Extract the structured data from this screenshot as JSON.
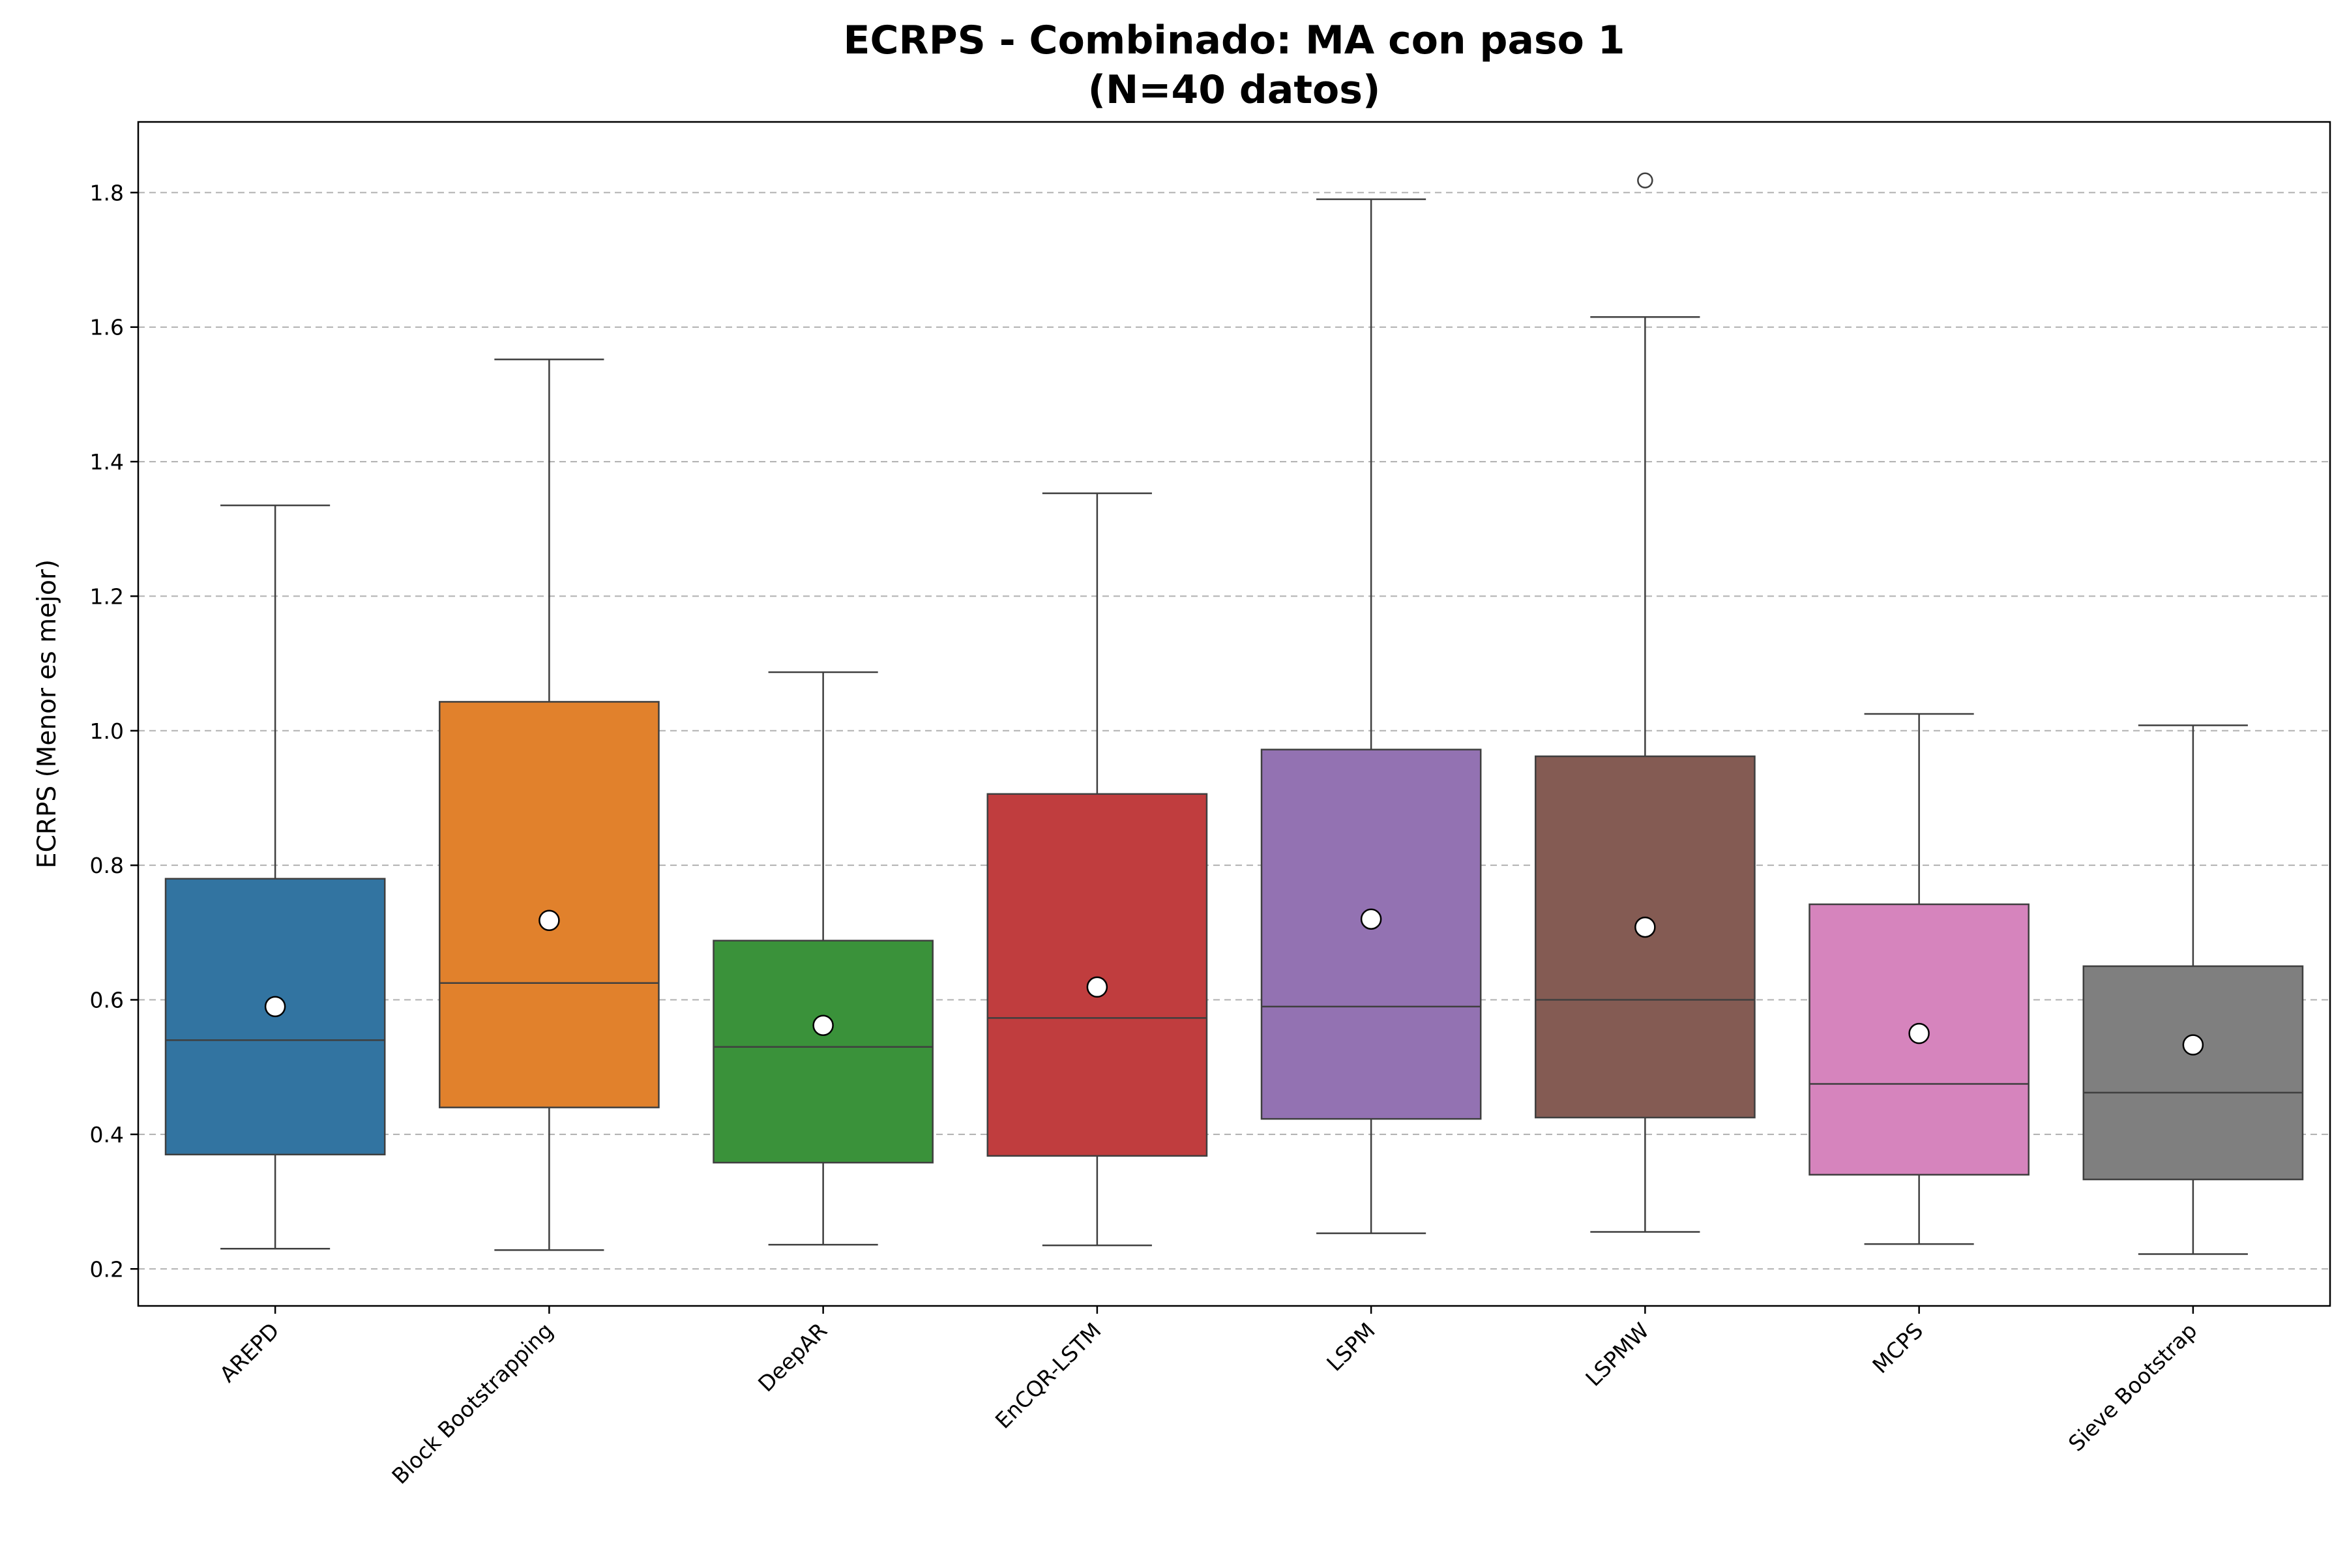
{
  "chart_data": {
    "type": "box",
    "title": "ECRPS - Combinado: MA con paso 1",
    "subtitle": "(N=40 datos)",
    "xlabel": "",
    "ylabel": "ECRPS (Menor es mejor)",
    "ylim": [
      0.145,
      1.905
    ],
    "yticks": [
      0.2,
      0.4,
      0.6,
      0.8,
      1.0,
      1.2,
      1.4,
      1.6,
      1.8
    ],
    "ytick_labels": [
      "0.2",
      "0.4",
      "0.6",
      "0.8",
      "1.0",
      "1.2",
      "1.4",
      "1.6",
      "1.8"
    ],
    "grid": "horizontal dashed",
    "categories": [
      "AREPD",
      "Block Bootstrapping",
      "DeepAR",
      "EnCQR-LSTM",
      "LSPM",
      "LSPMW",
      "MCPS",
      "Sieve Bootstrap"
    ],
    "boxes": [
      {
        "name": "AREPD",
        "color": "#3274a1",
        "whislo": 0.23,
        "q1": 0.37,
        "median": 0.54,
        "q3": 0.78,
        "whishi": 1.335,
        "mean": 0.59,
        "outliers": []
      },
      {
        "name": "Block Bootstrapping",
        "color": "#e1812c",
        "whislo": 0.228,
        "q1": 0.44,
        "median": 0.625,
        "q3": 1.043,
        "whishi": 1.552,
        "mean": 0.718,
        "outliers": []
      },
      {
        "name": "DeepAR",
        "color": "#3a923a",
        "whislo": 0.236,
        "q1": 0.358,
        "median": 0.53,
        "q3": 0.688,
        "whishi": 1.087,
        "mean": 0.562,
        "outliers": []
      },
      {
        "name": "EnCQR-LSTM",
        "color": "#c03d3e",
        "whislo": 0.235,
        "q1": 0.368,
        "median": 0.573,
        "q3": 0.906,
        "whishi": 1.353,
        "mean": 0.619,
        "outliers": []
      },
      {
        "name": "LSPM",
        "color": "#9372b2",
        "whislo": 0.253,
        "q1": 0.423,
        "median": 0.59,
        "q3": 0.972,
        "whishi": 1.79,
        "mean": 0.72,
        "outliers": []
      },
      {
        "name": "LSPMW",
        "color": "#845b53",
        "whislo": 0.255,
        "q1": 0.425,
        "median": 0.6,
        "q3": 0.962,
        "whishi": 1.615,
        "mean": 0.708,
        "outliers": [
          1.818
        ]
      },
      {
        "name": "MCPS",
        "color": "#d684bd",
        "whislo": 0.237,
        "q1": 0.34,
        "median": 0.475,
        "q3": 0.742,
        "whishi": 1.025,
        "mean": 0.55,
        "outliers": []
      },
      {
        "name": "Sieve Bootstrap",
        "color": "#7f7f7f",
        "whislo": 0.222,
        "q1": 0.333,
        "median": 0.462,
        "q3": 0.65,
        "whishi": 1.008,
        "mean": 0.533,
        "outliers": []
      }
    ]
  }
}
